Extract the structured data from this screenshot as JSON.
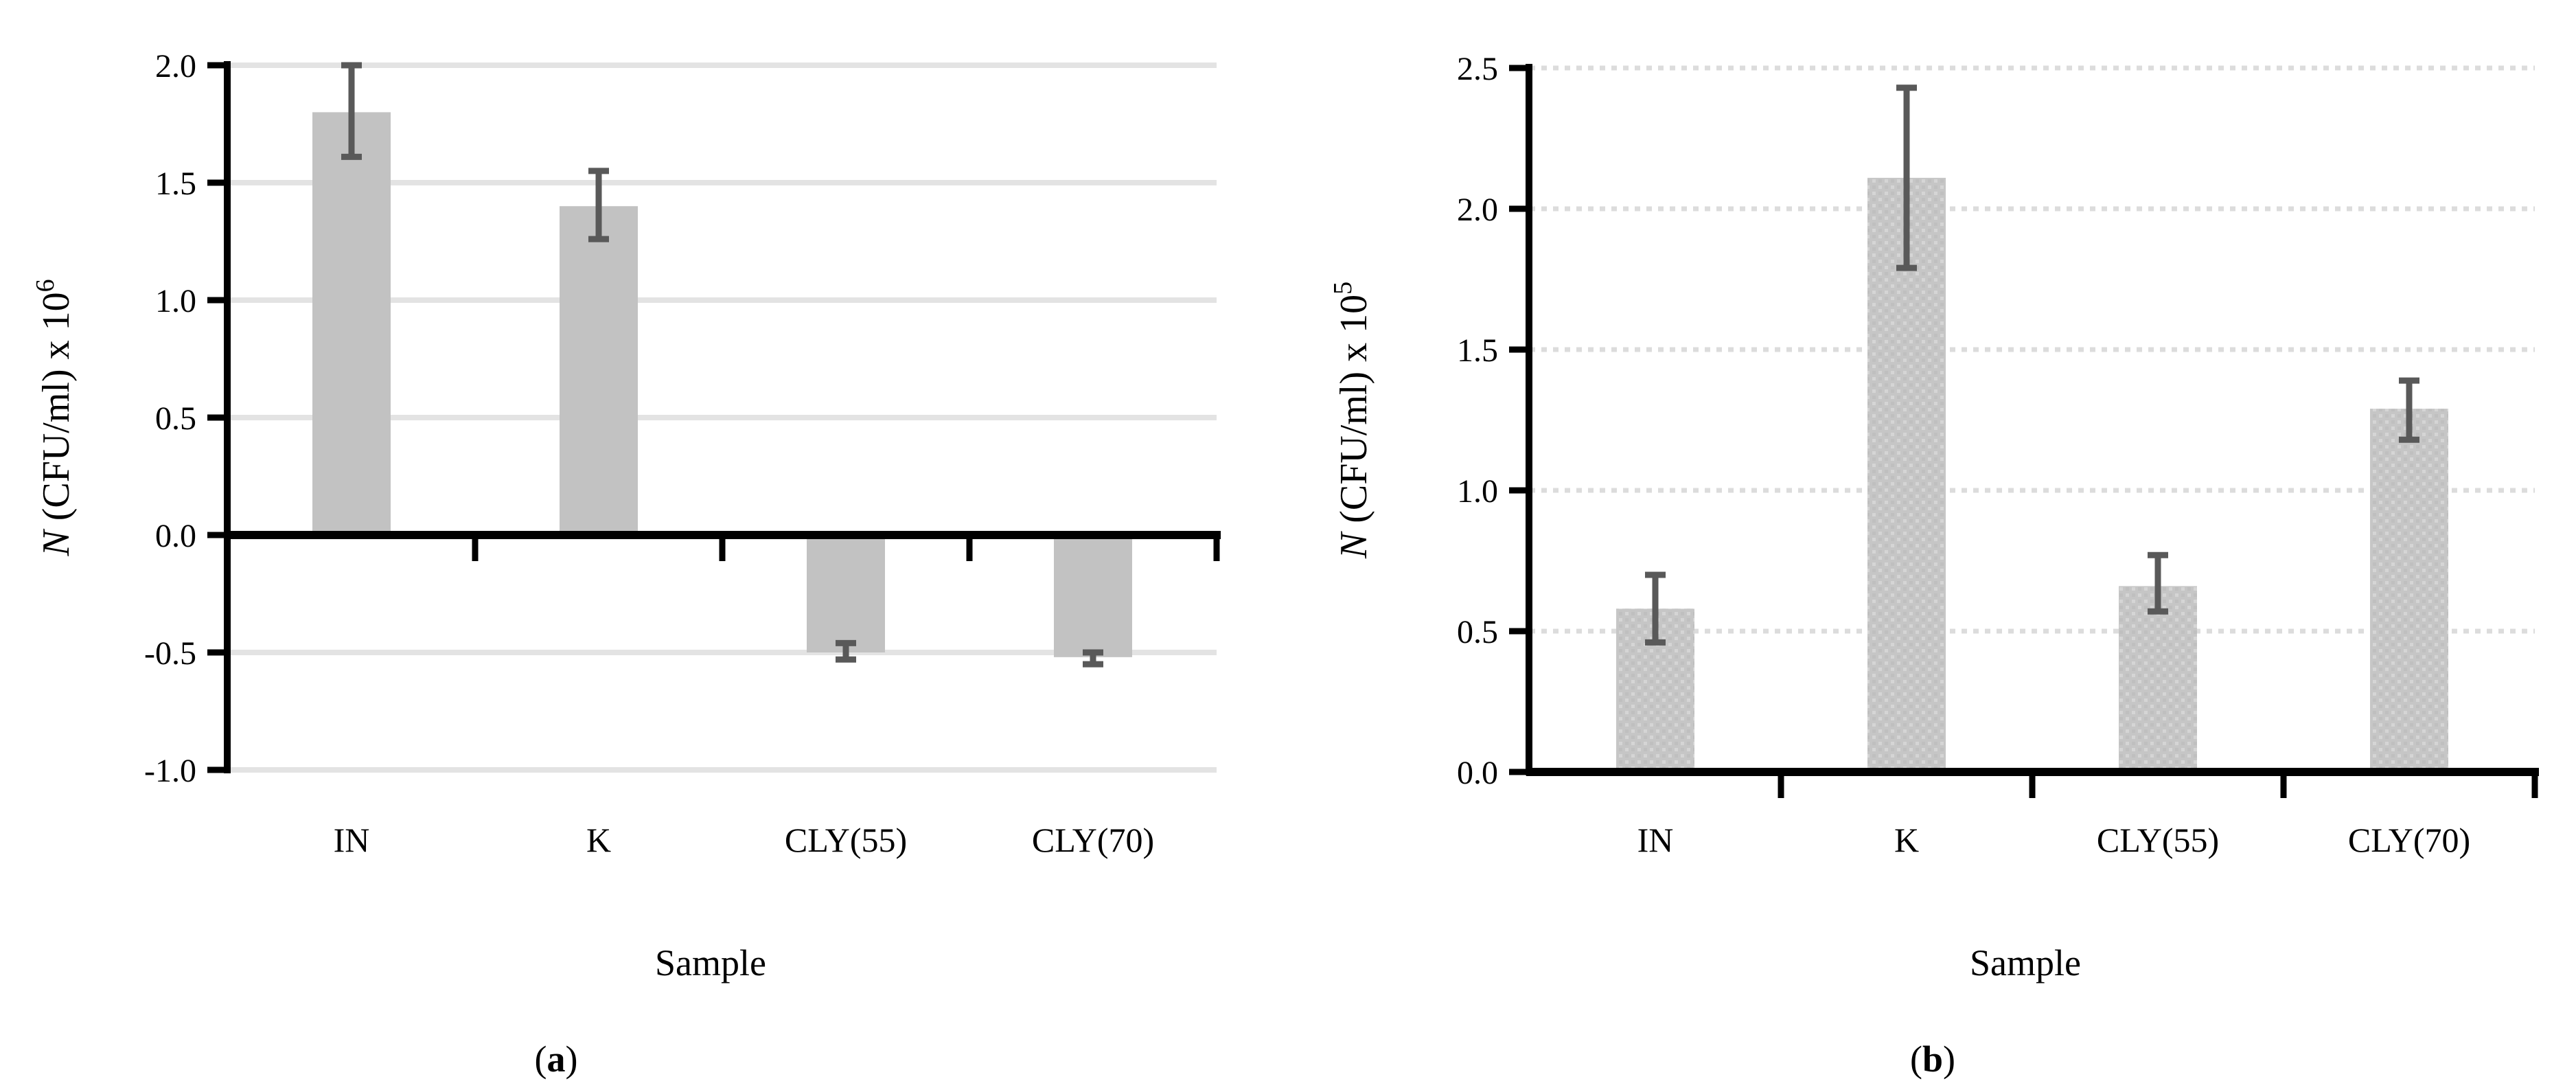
{
  "figure": {
    "background": "#ffffff",
    "bar_fill": "#c2c2c2",
    "bar_fill_b_base": "#c6c6c6",
    "bar_fill_b_dot_light": "#d5d5d5",
    "bar_fill_b_dot_dark": "#bfbfbf",
    "error_bar_color": "#595959",
    "grid_color_a": "#e3e3e3",
    "grid_color_b": "#dcdcdc",
    "axis_color": "#000000"
  },
  "chart_data": [
    {
      "id": "a",
      "type": "bar",
      "caption": "(a)",
      "caption_letter": "a",
      "xlabel": "Sample",
      "ylabel_prefix": "N",
      "ylabel_base": " (CFU/ml) x 10",
      "ylabel_exponent": "6",
      "categories": [
        "IN",
        "K",
        "CLY(55)",
        "CLY(70)"
      ],
      "values": [
        1.8,
        1.4,
        -0.5,
        -0.52
      ],
      "error_low": [
        1.61,
        1.26,
        -0.53,
        -0.55
      ],
      "error_high": [
        2.0,
        1.55,
        -0.46,
        -0.5
      ],
      "ylim": [
        -1.0,
        2.0
      ],
      "ytick_step": 0.5,
      "ytick_labels": [
        "2.0",
        "1.5",
        "1.0",
        "0.5",
        "0.0",
        "-0.5",
        "-1.0"
      ],
      "grid": "solid",
      "bar_texture": "solid",
      "legend": "none"
    },
    {
      "id": "b",
      "type": "bar",
      "caption": "(b)",
      "caption_letter": "b",
      "xlabel": "Sample",
      "ylabel_prefix": "N",
      "ylabel_base": " (CFU/ml) x 10",
      "ylabel_exponent": "5",
      "categories": [
        "IN",
        "K",
        "CLY(55)",
        "CLY(70)"
      ],
      "values": [
        0.58,
        2.11,
        0.66,
        1.29
      ],
      "error_low": [
        0.46,
        1.79,
        0.57,
        1.18
      ],
      "error_high": [
        0.7,
        2.43,
        0.77,
        1.39
      ],
      "ylim": [
        0.0,
        2.5
      ],
      "ytick_step": 0.5,
      "ytick_labels": [
        "2.5",
        "2.0",
        "1.5",
        "1.0",
        "0.5",
        "0.0"
      ],
      "grid": "dotted",
      "bar_texture": "dotted",
      "legend": "none"
    }
  ]
}
